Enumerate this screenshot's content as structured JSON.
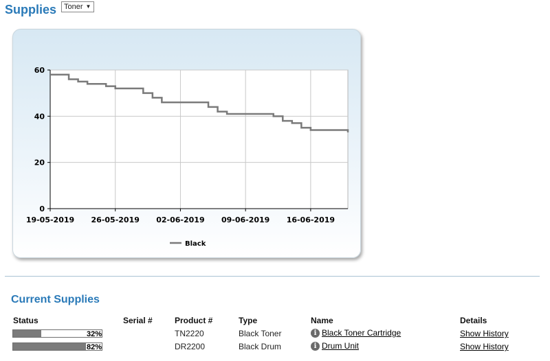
{
  "page": {
    "title": "Supplies",
    "supply_filter": {
      "selected": "Toner"
    }
  },
  "chart_data": {
    "type": "line",
    "title": "",
    "xlabel": "",
    "ylabel": "",
    "x_ticks": [
      "19-05-2019",
      "26-05-2019",
      "02-06-2019",
      "09-06-2019",
      "16-06-2019"
    ],
    "y_ticks": [
      "0",
      "20",
      "40",
      "60"
    ],
    "ylim": [
      0,
      60
    ],
    "xlim": [
      "19-05-2019",
      "20-06-2019"
    ],
    "grid": true,
    "legend_position": "bottom",
    "series": [
      {
        "name": "Black",
        "color": "#7a7a7a",
        "x": [
          "19-05-2019",
          "20-05-2019",
          "21-05-2019",
          "22-05-2019",
          "23-05-2019",
          "24-05-2019",
          "25-05-2019",
          "26-05-2019",
          "27-05-2019",
          "28-05-2019",
          "29-05-2019",
          "30-05-2019",
          "31-05-2019",
          "01-06-2019",
          "02-06-2019",
          "03-06-2019",
          "04-06-2019",
          "05-06-2019",
          "06-06-2019",
          "07-06-2019",
          "08-06-2019",
          "09-06-2019",
          "10-06-2019",
          "11-06-2019",
          "12-06-2019",
          "13-06-2019",
          "14-06-2019",
          "15-06-2019",
          "16-06-2019",
          "17-06-2019",
          "18-06-2019",
          "19-06-2019",
          "20-06-2019"
        ],
        "values": [
          58,
          58,
          56,
          55,
          54,
          54,
          53,
          52,
          52,
          52,
          50,
          48,
          46,
          46,
          46,
          46,
          46,
          44,
          42,
          41,
          41,
          41,
          41,
          41,
          40,
          38,
          37,
          35,
          34,
          34,
          34,
          34,
          33
        ]
      }
    ]
  },
  "current_supplies": {
    "title": "Current Supplies",
    "headers": {
      "status": "Status",
      "serial": "Serial #",
      "product": "Product #",
      "type": "Type",
      "name": "Name",
      "details": "Details"
    },
    "rows": [
      {
        "percent": 32,
        "percent_label": "32%",
        "serial": "",
        "product": "TN2220",
        "type": "Black Toner",
        "name": "Black Toner Cartridge",
        "details": "Show History"
      },
      {
        "percent": 82,
        "percent_label": "82%",
        "serial": "",
        "product": "DR2200",
        "type": "Black Drum",
        "name": "Drum Unit",
        "details": "Show History"
      }
    ]
  }
}
